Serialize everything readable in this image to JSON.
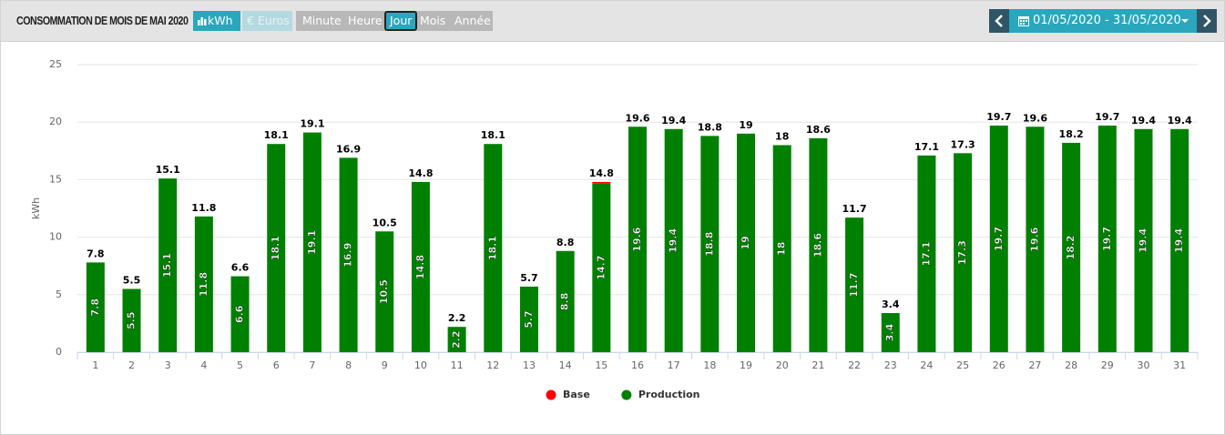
{
  "header": {
    "title": "CONSOMMATION DE MOIS DE MAI 2020",
    "unit_buttons": [
      "kWh",
      "€ Euros"
    ],
    "period_buttons": [
      "Minute",
      "Heure",
      "Jour",
      "Mois",
      "Année"
    ],
    "date_range": "01/05/2020 - 31/05/2020"
  },
  "chart_data": {
    "type": "bar",
    "stacked": true,
    "y_label": "kWh",
    "categories": [
      "1",
      "2",
      "3",
      "4",
      "5",
      "6",
      "7",
      "8",
      "9",
      "10",
      "11",
      "12",
      "13",
      "14",
      "15",
      "16",
      "17",
      "18",
      "19",
      "20",
      "21",
      "22",
      "23",
      "24",
      "25",
      "26",
      "27",
      "28",
      "29",
      "30",
      "31"
    ],
    "series": [
      {
        "name": "Production",
        "color": "#008000",
        "values": [
          7.8,
          5.5,
          15.1,
          11.8,
          6.6,
          18.1,
          19.1,
          16.9,
          10.5,
          14.8,
          2.2,
          18.1,
          5.7,
          8.8,
          14.7,
          19.6,
          19.4,
          18.8,
          19,
          18,
          18.6,
          11.7,
          3.4,
          17.1,
          17.3,
          19.7,
          19.6,
          18.2,
          19.7,
          19.4,
          19.4
        ]
      },
      {
        "name": "Base",
        "color": "#ff0000",
        "values": [
          0,
          0,
          0,
          0,
          0,
          0,
          0,
          0,
          0,
          0,
          0,
          0,
          0,
          0,
          0.1,
          0,
          0,
          0,
          0,
          0,
          0,
          0,
          0,
          0,
          0,
          0,
          0,
          0,
          0,
          0,
          0
        ]
      }
    ],
    "stack_labels": [
      "7.8",
      "5.5",
      "15.1",
      "11.8",
      "6.6",
      "18.1",
      "19.1",
      "16.9",
      "10.5",
      "14.8",
      "2.2",
      "18.1",
      "5.7",
      "8.8",
      "14.8",
      "19.6",
      "19.4",
      "18.8",
      "19",
      "18",
      "18.6",
      "11.7",
      "3.4",
      "17.1",
      "17.3",
      "19.7",
      "19.6",
      "18.2",
      "19.7",
      "19.4",
      "19.4"
    ],
    "legend_order": [
      1,
      0
    ],
    "ylim": [
      0,
      25
    ],
    "yticks": [
      0,
      5,
      10,
      15,
      20,
      25
    ],
    "grid": true
  }
}
